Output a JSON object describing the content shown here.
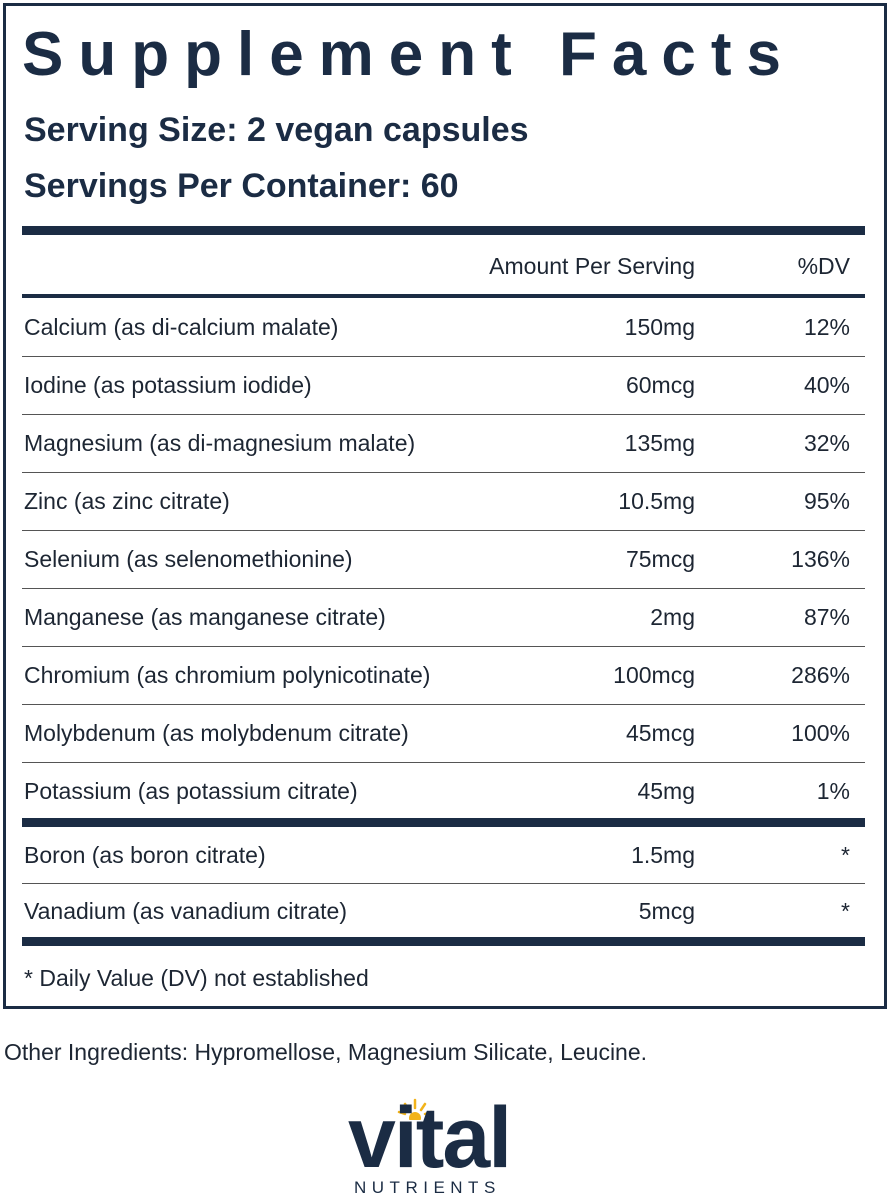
{
  "title": "Supplement Facts",
  "serving_size": "Serving Size: 2 vegan capsules",
  "servings_per_container": "Servings Per Container: 60",
  "table": {
    "columns": [
      "Amount Per Serving",
      "%DV"
    ],
    "groups": [
      [
        [
          "Calcium (as di-calcium malate)",
          "150mg",
          "12%"
        ],
        [
          "Iodine (as potassium iodide)",
          "60mcg",
          "40%"
        ],
        [
          "Magnesium (as di-magnesium malate)",
          "135mg",
          "32%"
        ],
        [
          "Zinc (as zinc citrate)",
          "10.5mg",
          "95%"
        ],
        [
          "Selenium (as selenomethionine)",
          "75mcg",
          "136%"
        ],
        [
          "Manganese (as manganese citrate)",
          "2mg",
          "87%"
        ],
        [
          "Chromium (as chromium polynicotinate)",
          "100mcg",
          "286%"
        ],
        [
          "Molybdenum (as molybdenum citrate)",
          "45mcg",
          "100%"
        ],
        [
          "Potassium (as potassium citrate)",
          "45mg",
          "1%"
        ]
      ],
      [
        [
          "Boron (as boron citrate)",
          "1.5mg",
          "*"
        ],
        [
          "Vanadium (as vanadium citrate)",
          "5mcg",
          "*"
        ]
      ]
    ]
  },
  "footnote": "* Daily Value (DV) not established",
  "other_ingredients": "Other Ingredients: Hypromellose, Magnesium Silicate, Leucine.",
  "brand": {
    "name": "vital",
    "tagline": "NUTRIENTS"
  }
}
